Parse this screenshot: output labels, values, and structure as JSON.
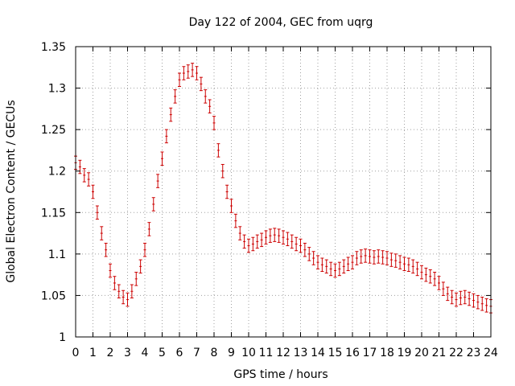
{
  "chart_data": {
    "type": "scatter",
    "title": "Day 122 of 2004, GEC from uqrg",
    "xlabel": "GPS time / hours",
    "ylabel": "Global Electron Content / GECUs",
    "xlim": [
      0,
      24
    ],
    "ylim": [
      1,
      1.35
    ],
    "grid": true,
    "legend": "none",
    "x_ticks": [
      "0",
      "1",
      "2",
      "3",
      "4",
      "5",
      "6",
      "7",
      "8",
      "9",
      "10",
      "11",
      "12",
      "13",
      "14",
      "15",
      "16",
      "17",
      "18",
      "19",
      "20",
      "21",
      "22",
      "23",
      "24"
    ],
    "y_ticks": [
      "1",
      "1.05",
      "1.1",
      "1.15",
      "1.2",
      "1.25",
      "1.3",
      "1.35"
    ],
    "error_bar_half_width": 0.008,
    "series": [
      {
        "color": "#cc0000",
        "x": [
          0,
          0.25,
          0.5,
          0.75,
          1,
          1.25,
          1.5,
          1.75,
          2,
          2.25,
          2.5,
          2.75,
          3,
          3.25,
          3.5,
          3.75,
          4,
          4.25,
          4.5,
          4.75,
          5,
          5.25,
          5.5,
          5.75,
          6,
          6.25,
          6.5,
          6.75,
          7,
          7.25,
          7.5,
          7.75,
          8,
          8.25,
          8.5,
          8.75,
          9,
          9.25,
          9.5,
          9.75,
          10,
          10.25,
          10.5,
          10.75,
          11,
          11.25,
          11.5,
          11.75,
          12,
          12.25,
          12.5,
          12.75,
          13,
          13.25,
          13.5,
          13.75,
          14,
          14.25,
          14.5,
          14.75,
          15,
          15.25,
          15.5,
          15.75,
          16,
          16.25,
          16.5,
          16.75,
          17,
          17.25,
          17.5,
          17.75,
          18,
          18.25,
          18.5,
          18.75,
          19,
          19.25,
          19.5,
          19.75,
          20,
          20.25,
          20.5,
          20.75,
          21,
          21.25,
          21.5,
          21.75,
          22,
          22.25,
          22.5,
          22.75,
          23,
          23.25,
          23.5,
          23.75,
          24
        ],
        "y": [
          1.21,
          1.205,
          1.195,
          1.19,
          1.175,
          1.15,
          1.125,
          1.105,
          1.08,
          1.065,
          1.055,
          1.048,
          1.045,
          1.055,
          1.07,
          1.085,
          1.105,
          1.13,
          1.16,
          1.188,
          1.215,
          1.242,
          1.268,
          1.29,
          1.31,
          1.318,
          1.32,
          1.322,
          1.318,
          1.305,
          1.29,
          1.278,
          1.258,
          1.225,
          1.2,
          1.175,
          1.158,
          1.14,
          1.125,
          1.115,
          1.11,
          1.112,
          1.115,
          1.117,
          1.12,
          1.122,
          1.123,
          1.122,
          1.12,
          1.118,
          1.115,
          1.112,
          1.11,
          1.105,
          1.1,
          1.095,
          1.09,
          1.087,
          1.085,
          1.082,
          1.08,
          1.082,
          1.085,
          1.088,
          1.09,
          1.095,
          1.097,
          1.098,
          1.097,
          1.096,
          1.097,
          1.096,
          1.095,
          1.093,
          1.092,
          1.09,
          1.088,
          1.087,
          1.085,
          1.082,
          1.078,
          1.075,
          1.073,
          1.07,
          1.065,
          1.058,
          1.052,
          1.048,
          1.045,
          1.047,
          1.048,
          1.046,
          1.044,
          1.042,
          1.04,
          1.038,
          1.037
        ]
      }
    ]
  }
}
